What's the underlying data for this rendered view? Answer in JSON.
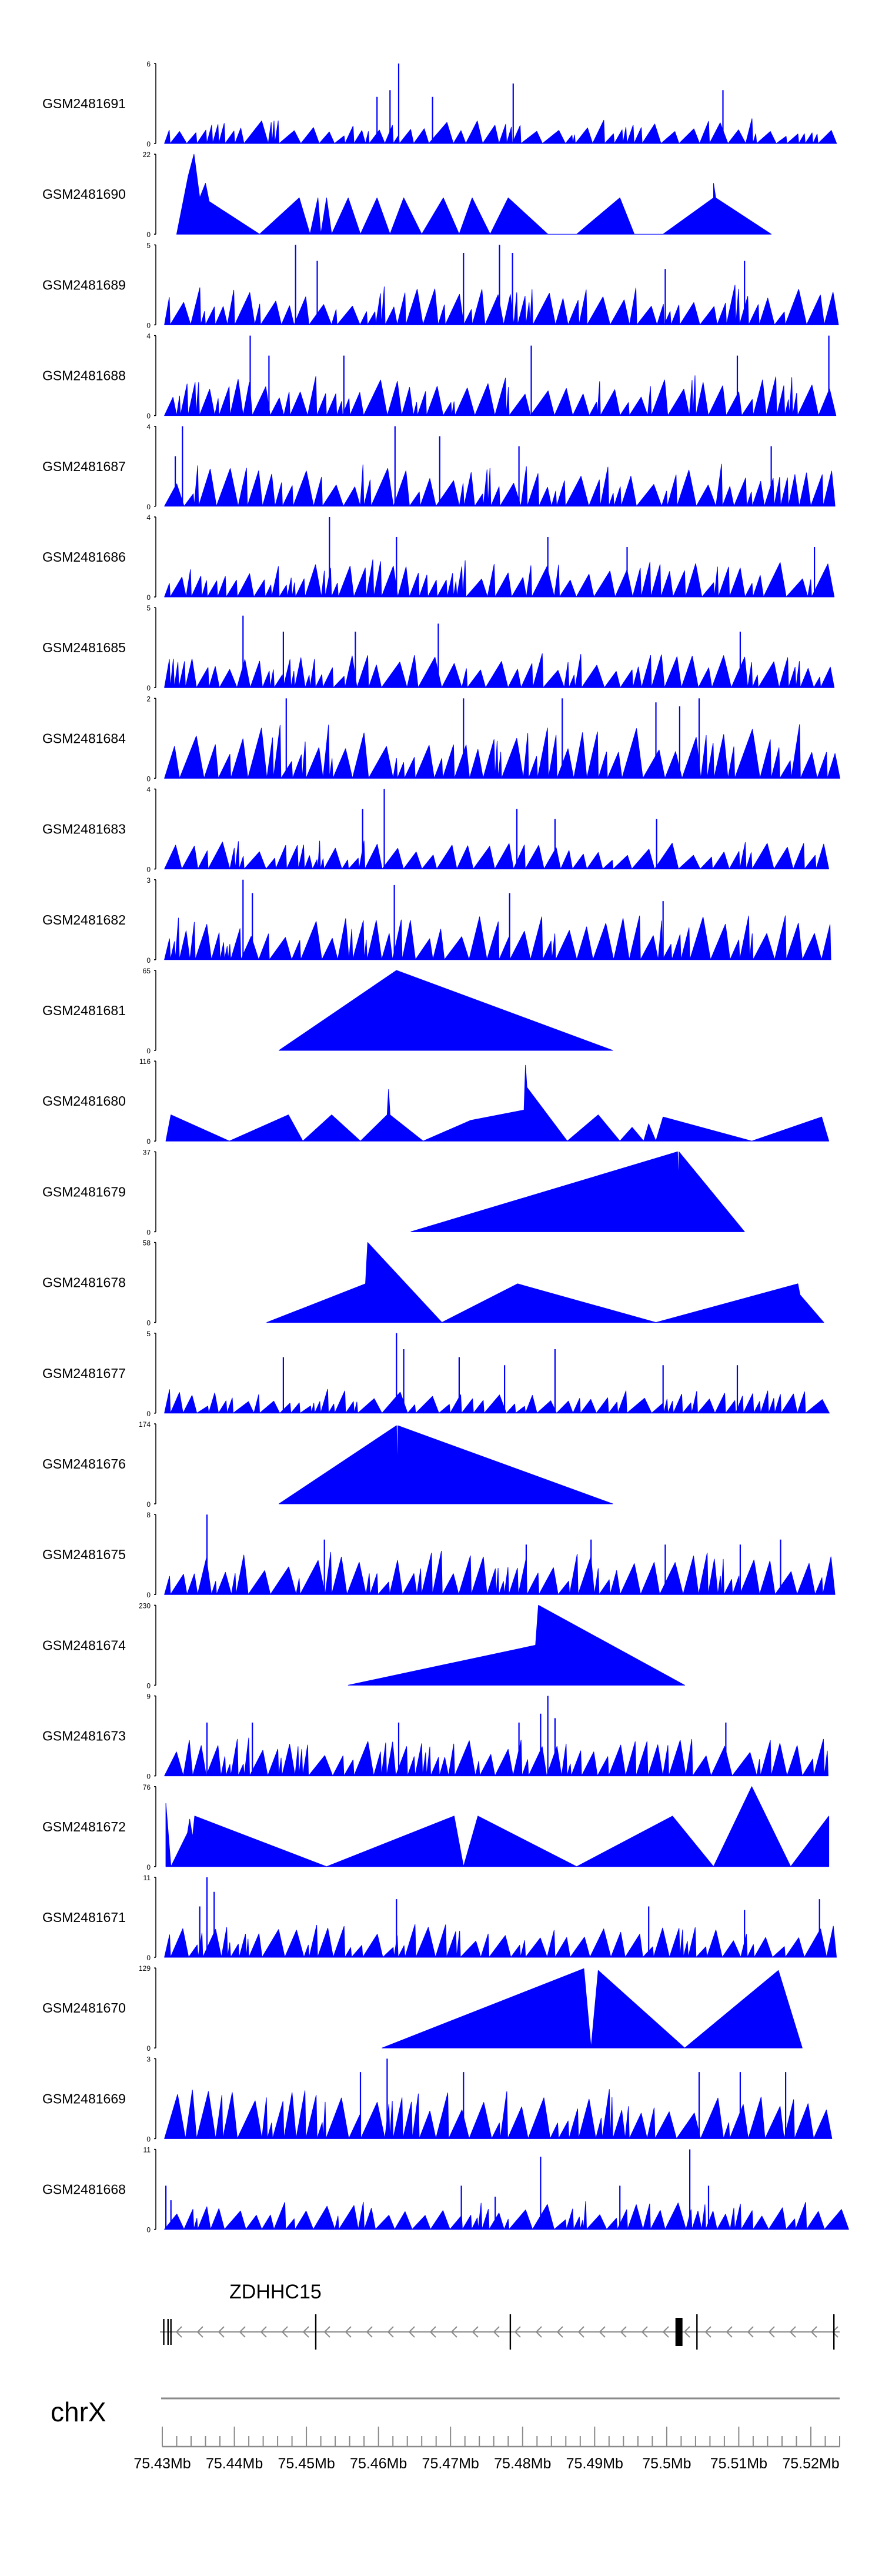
{
  "chart_data": {
    "type": "area",
    "color": "#0000ff",
    "region": {
      "chromosome": "chrX",
      "gene": "ZDHHC15",
      "xlim": [
        75.43,
        75.524
      ],
      "tick_labels": [
        "75.43Mb",
        "75.44Mb",
        "75.45Mb",
        "75.46Mb",
        "75.47Mb",
        "75.48Mb",
        "75.49Mb",
        "75.5Mb",
        "75.51Mb",
        "75.52Mb"
      ],
      "tick_values": [
        75.43,
        75.44,
        75.45,
        75.46,
        75.47,
        75.48,
        75.49,
        75.5,
        75.51,
        75.52
      ]
    },
    "tracks": [
      {
        "name": "GSM2481691",
        "ymax": "6",
        "ylim": [
          0,
          6
        ],
        "kind": "noise",
        "seed": 11,
        "base": 1.5,
        "peaks": [
          [
            75.4598,
            3.5
          ],
          [
            75.4616,
            4
          ],
          [
            75.4628,
            6
          ],
          [
            75.4675,
            3.5
          ],
          [
            75.4787,
            4.5
          ],
          [
            75.5078,
            4
          ]
        ]
      },
      {
        "name": "GSM2481690",
        "ymax": "22",
        "ylim": [
          0,
          22
        ],
        "kind": "shapes",
        "points": [
          [
            75.432,
            0
          ],
          [
            75.4336,
            16
          ],
          [
            75.4344,
            22
          ],
          [
            75.4352,
            10
          ],
          [
            75.436,
            14
          ],
          [
            75.4365,
            9
          ],
          [
            75.4435,
            0
          ],
          [
            75.449,
            10
          ],
          [
            75.4505,
            0
          ],
          [
            75.4516,
            10
          ],
          [
            75.452,
            0
          ],
          [
            75.4528,
            10
          ],
          [
            75.4535,
            0
          ],
          [
            75.4558,
            10
          ],
          [
            75.4575,
            0
          ],
          [
            75.4598,
            10
          ],
          [
            75.4616,
            0
          ],
          [
            75.4635,
            10
          ],
          [
            75.466,
            0
          ],
          [
            75.469,
            10
          ],
          [
            75.4712,
            0
          ],
          [
            75.473,
            10
          ],
          [
            75.4755,
            0
          ],
          [
            75.478,
            10
          ],
          [
            75.4835,
            0
          ],
          [
            75.4875,
            0
          ],
          [
            75.4935,
            10
          ],
          [
            75.4955,
            0
          ],
          [
            75.4995,
            0
          ],
          [
            75.5065,
            10
          ],
          [
            75.5065,
            14
          ],
          [
            75.5068,
            10
          ],
          [
            75.5145,
            0
          ]
        ]
      },
      {
        "name": "GSM2481689",
        "ymax": "5",
        "ylim": [
          0,
          5
        ],
        "kind": "noise",
        "seed": 23,
        "base": 2,
        "peaks": [
          [
            75.4485,
            5
          ],
          [
            75.4515,
            4
          ],
          [
            75.4718,
            4.5
          ],
          [
            75.4768,
            5
          ],
          [
            75.4786,
            4.5
          ],
          [
            75.4998,
            3.5
          ],
          [
            75.5108,
            4
          ]
        ]
      },
      {
        "name": "GSM2481688",
        "ymax": "4",
        "ylim": [
          0,
          4
        ],
        "kind": "noise",
        "seed": 37,
        "base": 1.6,
        "peaks": [
          [
            75.4422,
            4
          ],
          [
            75.4448,
            3
          ],
          [
            75.4552,
            3
          ],
          [
            75.4812,
            3.5
          ],
          [
            75.5098,
            3
          ],
          [
            75.5225,
            4
          ]
        ]
      },
      {
        "name": "GSM2481687",
        "ymax": "4",
        "ylim": [
          0,
          4
        ],
        "kind": "noise",
        "seed": 41,
        "base": 1.7,
        "peaks": [
          [
            75.4328,
            4
          ],
          [
            75.4318,
            2.5
          ],
          [
            75.4623,
            4
          ],
          [
            75.4685,
            3.5
          ],
          [
            75.4795,
            3
          ],
          [
            75.5145,
            3
          ]
        ]
      },
      {
        "name": "GSM2481686",
        "ymax": "4",
        "ylim": [
          0,
          4
        ],
        "kind": "noise",
        "seed": 53,
        "base": 1.5,
        "peaks": [
          [
            75.4532,
            4
          ],
          [
            75.4625,
            3
          ],
          [
            75.4835,
            3
          ],
          [
            75.4945,
            2.5
          ],
          [
            75.5205,
            2.5
          ]
        ]
      },
      {
        "name": "GSM2481685",
        "ymax": "5",
        "ylim": [
          0,
          5
        ],
        "kind": "noise",
        "seed": 67,
        "base": 1.8,
        "peaks": [
          [
            75.4412,
            4.5
          ],
          [
            75.4468,
            3.5
          ],
          [
            75.4568,
            3.5
          ],
          [
            75.4683,
            4
          ],
          [
            75.5102,
            3.5
          ]
        ]
      },
      {
        "name": "GSM2481684",
        "ymax": "2",
        "ylim": [
          0,
          2
        ],
        "kind": "noise",
        "seed": 71,
        "base": 1.1,
        "peaks": [
          [
            75.4472,
            2
          ],
          [
            75.4718,
            2
          ],
          [
            75.4855,
            2
          ],
          [
            75.4985,
            1.9
          ],
          [
            75.5018,
            1.8
          ],
          [
            75.5045,
            2
          ]
        ]
      },
      {
        "name": "GSM2481683",
        "ymax": "4",
        "ylim": [
          0,
          4
        ],
        "kind": "noise",
        "seed": 83,
        "base": 1.2,
        "peaks": [
          [
            75.4578,
            3
          ],
          [
            75.4608,
            4
          ],
          [
            75.4792,
            3
          ],
          [
            75.4845,
            2.5
          ],
          [
            75.4986,
            2.5
          ]
        ]
      },
      {
        "name": "GSM2481682",
        "ymax": "3",
        "ylim": [
          0,
          3
        ],
        "kind": "noise",
        "seed": 97,
        "base": 1.4,
        "peaks": [
          [
            75.4412,
            3
          ],
          [
            75.4425,
            2.5
          ],
          [
            75.4622,
            2.8
          ],
          [
            75.4782,
            2.5
          ],
          [
            75.4995,
            2.2
          ]
        ]
      },
      {
        "name": "GSM2481681",
        "ymax": "65",
        "ylim": [
          0,
          65
        ],
        "kind": "shapes",
        "points": [
          [
            75.4462,
            0
          ],
          [
            75.4625,
            65
          ],
          [
            75.4925,
            0
          ]
        ]
      },
      {
        "name": "GSM2481680",
        "ymax": "116",
        "ylim": [
          0,
          116
        ],
        "kind": "shapes",
        "points": [
          [
            75.4305,
            0
          ],
          [
            75.4312,
            38
          ],
          [
            75.4393,
            0
          ],
          [
            75.4475,
            38
          ],
          [
            75.4495,
            0
          ],
          [
            75.4535,
            38
          ],
          [
            75.4575,
            0
          ],
          [
            75.4612,
            38
          ],
          [
            75.4614,
            75
          ],
          [
            75.4616,
            38
          ],
          [
            75.4662,
            0
          ],
          [
            75.4728,
            30
          ],
          [
            75.4802,
            45
          ],
          [
            75.4804,
            110
          ],
          [
            75.4806,
            78
          ],
          [
            75.4862,
            0
          ],
          [
            75.4905,
            38
          ],
          [
            75.4935,
            0
          ],
          [
            75.4952,
            20
          ],
          [
            75.4968,
            0
          ],
          [
            75.4975,
            25
          ],
          [
            75.4985,
            0
          ],
          [
            75.4995,
            35
          ],
          [
            75.5118,
            0
          ],
          [
            75.5215,
            35
          ],
          [
            75.5225,
            0
          ]
        ]
      },
      {
        "name": "GSM2481679",
        "ymax": "37",
        "ylim": [
          0,
          37
        ],
        "kind": "shapes",
        "points": [
          [
            75.4645,
            0
          ],
          [
            75.5015,
            37
          ],
          [
            75.5016,
            22
          ],
          [
            75.5017,
            37
          ],
          [
            75.5108,
            0
          ]
        ]
      },
      {
        "name": "GSM2481678",
        "ymax": "58",
        "ylim": [
          0,
          58
        ],
        "kind": "shapes",
        "points": [
          [
            75.4445,
            0
          ],
          [
            75.4582,
            28
          ],
          [
            75.4585,
            58
          ],
          [
            75.4688,
            0
          ],
          [
            75.4793,
            28
          ],
          [
            75.4985,
            0
          ],
          [
            75.5182,
            28
          ],
          [
            75.5185,
            20
          ],
          [
            75.5218,
            0
          ]
        ]
      },
      {
        "name": "GSM2481677",
        "ymax": "5",
        "ylim": [
          0,
          5
        ],
        "kind": "noise",
        "seed": 101,
        "base": 1.2,
        "peaks": [
          [
            75.4468,
            3.5
          ],
          [
            75.4625,
            5
          ],
          [
            75.4635,
            4
          ],
          [
            75.4712,
            3.5
          ],
          [
            75.4775,
            3
          ],
          [
            75.4845,
            4
          ],
          [
            75.4995,
            3
          ],
          [
            75.5098,
            3
          ]
        ]
      },
      {
        "name": "GSM2481676",
        "ymax": "174",
        "ylim": [
          0,
          174
        ],
        "kind": "shapes",
        "points": [
          [
            75.4462,
            0
          ],
          [
            75.4625,
            170
          ],
          [
            75.4626,
            60
          ],
          [
            75.4627,
            170
          ],
          [
            75.4925,
            0
          ]
        ]
      },
      {
        "name": "GSM2481675",
        "ymax": "8",
        "ylim": [
          0,
          8
        ],
        "kind": "noise",
        "seed": 113,
        "base": 3.5,
        "peaks": [
          [
            75.4362,
            8
          ],
          [
            75.4525,
            5.5
          ],
          [
            75.4805,
            5
          ],
          [
            75.4895,
            5.5
          ],
          [
            75.4998,
            5
          ],
          [
            75.5102,
            5
          ],
          [
            75.5158,
            5.5
          ]
        ]
      },
      {
        "name": "GSM2481674",
        "ymax": "230",
        "ylim": [
          0,
          230
        ],
        "kind": "shapes",
        "points": [
          [
            75.4558,
            0
          ],
          [
            75.4818,
            115
          ],
          [
            75.4822,
            230
          ],
          [
            75.5025,
            0
          ]
        ]
      },
      {
        "name": "GSM2481673",
        "ymax": "9",
        "ylim": [
          0,
          9
        ],
        "kind": "noise",
        "seed": 127,
        "base": 3.5,
        "peaks": [
          [
            75.4362,
            6
          ],
          [
            75.4425,
            6
          ],
          [
            75.4628,
            6
          ],
          [
            75.4795,
            6
          ],
          [
            75.4825,
            7
          ],
          [
            75.4835,
            9
          ],
          [
            75.4845,
            6.5
          ],
          [
            75.5082,
            6
          ]
        ]
      },
      {
        "name": "GSM2481672",
        "ymax": "76",
        "ylim": [
          0,
          76
        ],
        "kind": "shapes",
        "points": [
          [
            75.4305,
            60
          ],
          [
            75.4312,
            0
          ],
          [
            75.4335,
            32
          ],
          [
            75.4338,
            45
          ],
          [
            75.4342,
            28
          ],
          [
            75.4345,
            48
          ],
          [
            75.4528,
            0
          ],
          [
            75.4705,
            48
          ],
          [
            75.4718,
            0
          ],
          [
            75.4738,
            48
          ],
          [
            75.4875,
            0
          ],
          [
            75.5008,
            48
          ],
          [
            75.5065,
            0
          ],
          [
            75.5118,
            76
          ],
          [
            75.5172,
            0
          ],
          [
            75.5225,
            48
          ]
        ]
      },
      {
        "name": "GSM2481671",
        "ymax": "11",
        "ylim": [
          0,
          11
        ],
        "kind": "noise",
        "seed": 131,
        "base": 3.8,
        "peaks": [
          [
            75.4362,
            11
          ],
          [
            75.4372,
            9
          ],
          [
            75.4352,
            7
          ],
          [
            75.4625,
            8
          ],
          [
            75.4975,
            7
          ],
          [
            75.5108,
            6.5
          ],
          [
            75.5212,
            8
          ]
        ]
      },
      {
        "name": "GSM2481670",
        "ymax": "129",
        "ylim": [
          0,
          129
        ],
        "kind": "shapes",
        "points": [
          [
            75.4605,
            0
          ],
          [
            75.4885,
            128
          ],
          [
            75.4895,
            0
          ],
          [
            75.4905,
            125
          ],
          [
            75.5025,
            0
          ],
          [
            75.5155,
            125
          ],
          [
            75.5188,
            0
          ]
        ]
      },
      {
        "name": "GSM2481669",
        "ymax": "3",
        "ylim": [
          0,
          3
        ],
        "kind": "noise",
        "seed": 139,
        "base": 1.6,
        "peaks": [
          [
            75.4575,
            2.5
          ],
          [
            75.4612,
            3
          ],
          [
            75.4718,
            2.5
          ],
          [
            75.5045,
            2.5
          ],
          [
            75.5102,
            2.5
          ],
          [
            75.5165,
            2.5
          ]
        ]
      },
      {
        "name": "GSM2481668",
        "ymax": "11",
        "ylim": [
          0,
          11
        ],
        "kind": "noise",
        "seed": 149,
        "base": 3.2,
        "peaks": [
          [
            75.4305,
            6
          ],
          [
            75.4312,
            4
          ],
          [
            75.4715,
            6
          ],
          [
            75.4762,
            4.5
          ],
          [
            75.4825,
            10
          ],
          [
            75.4935,
            6
          ],
          [
            75.5032,
            11
          ],
          [
            75.5058,
            6
          ]
        ]
      }
    ]
  }
}
